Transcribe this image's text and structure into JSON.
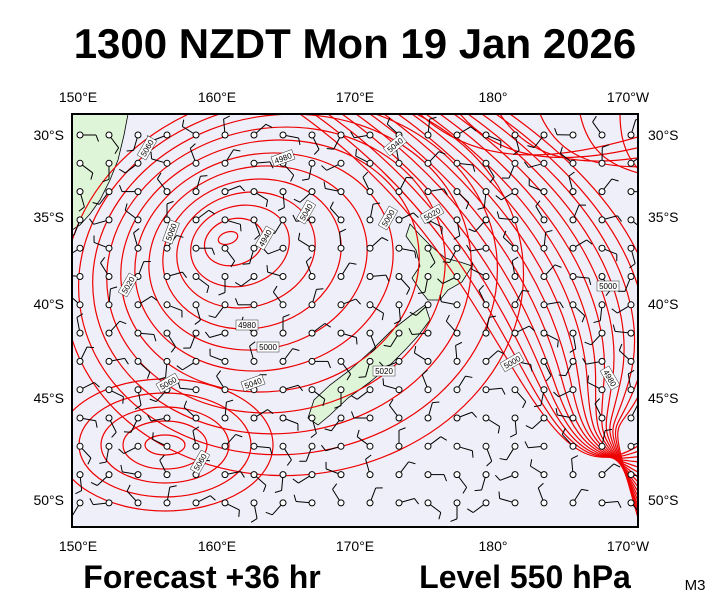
{
  "title": "1300 NZDT Mon 19 Jan 2026",
  "longitude_labels": [
    "150°E",
    "160°E",
    "170°E",
    "180°",
    "170°W"
  ],
  "latitude_labels": [
    "30°S",
    "35°S",
    "40°S",
    "45°S",
    "50°S"
  ],
  "contour_labels": [
    "5060",
    "4980",
    "5040",
    "5020",
    "5000",
    "4940",
    "5060",
    "5040",
    "5020",
    "4980",
    "5000",
    "5060",
    "5040",
    "5020",
    "5000",
    "5000",
    "4980",
    "5060"
  ],
  "footer": {
    "forecast": "Forecast +36 hr",
    "level": "Level 550 hPa",
    "model": "M3"
  }
}
